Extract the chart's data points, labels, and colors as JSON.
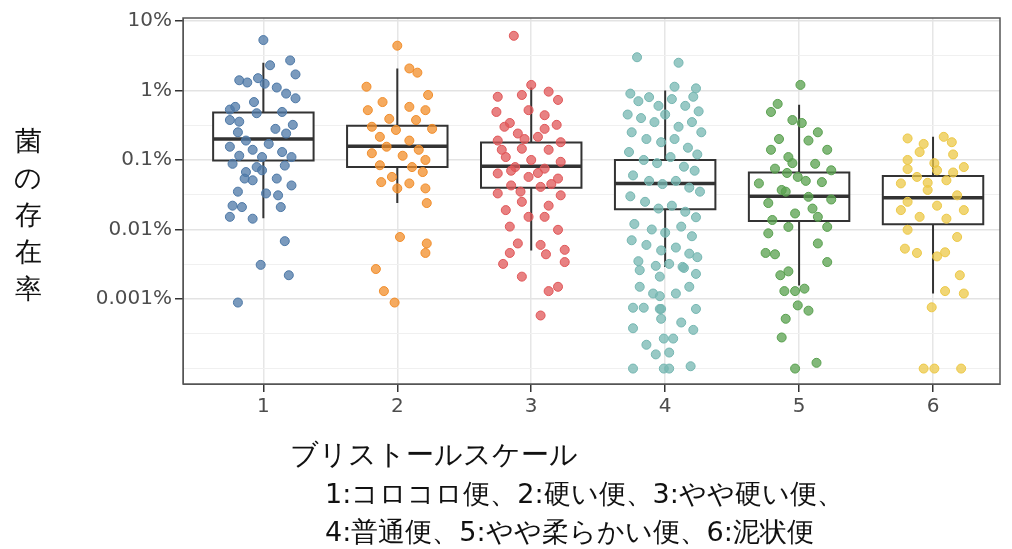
{
  "chart_data": {
    "type": "box",
    "xlabel": "ブリストールスケール",
    "ylabel": "菌の存在率",
    "annotations": [
      "1:コロコロ便、2:硬い便、3:やや硬い便、",
      "4:普通便、5:やや柔らかい便、6:泥状便"
    ],
    "x": [
      1,
      2,
      3,
      4,
      5,
      6
    ],
    "boxes": [
      {
        "low": 0.0145,
        "q1": 0.098,
        "median": 0.2,
        "q3": 0.48,
        "high": 2.5
      },
      {
        "low": 0.024,
        "q1": 0.079,
        "median": 0.158,
        "q3": 0.31,
        "high": 2.07
      },
      {
        "low": 0.005,
        "q1": 0.04,
        "median": 0.081,
        "q3": 0.178,
        "high": 1.1
      },
      {
        "low": 0.0029,
        "q1": 0.0195,
        "median": 0.046,
        "q3": 0.1,
        "high": 1.0
      },
      {
        "low": 0.00157,
        "q1": 0.0133,
        "median": 0.03,
        "q3": 0.066,
        "high": 0.62
      },
      {
        "low": 0.0012,
        "q1": 0.0119,
        "median": 0.0287,
        "q3": 0.059,
        "high": 0.215
      }
    ],
    "series": [
      {
        "type": "scatter",
        "color": "#4e79a7",
        "x": [
          1.0,
          1.2,
          1.05,
          1.24,
          0.82,
          0.88,
          0.96,
          1.01,
          1.1,
          1.17,
          1.24,
          0.93,
          0.79,
          0.75,
          0.95,
          1.14,
          0.75,
          0.82,
          1.22,
          1.09,
          0.81,
          1.17,
          0.87,
          1.04,
          0.75,
          0.92,
          1.14,
          0.82,
          0.99,
          1.21,
          0.77,
          0.95,
          1.16,
          0.87,
          0.99,
          0.86,
          0.92,
          1.1,
          1.21,
          0.81,
          1.02,
          1.11,
          0.77,
          0.84,
          1.13,
          0.75,
          0.92,
          1.16,
          0.98,
          1.19,
          0.81
        ],
        "values": [
          5.3,
          2.7,
          2.3,
          1.7,
          1.4,
          1.3,
          1.5,
          1.25,
          1.1,
          0.9,
          0.77,
          0.68,
          0.58,
          0.53,
          0.47,
          0.49,
          0.375,
          0.355,
          0.32,
          0.28,
          0.25,
          0.24,
          0.19,
          0.17,
          0.155,
          0.14,
          0.13,
          0.115,
          0.11,
          0.11,
          0.088,
          0.079,
          0.083,
          0.067,
          0.071,
          0.054,
          0.051,
          0.054,
          0.043,
          0.035,
          0.033,
          0.031,
          0.022,
          0.021,
          0.021,
          0.0152,
          0.0143,
          0.0068,
          0.0031,
          0.0022,
          0.00089
        ]
      },
      {
        "type": "scatter",
        "color": "#f28e2b",
        "x": [
          2.0,
          2.09,
          2.15,
          1.77,
          2.23,
          1.89,
          2.09,
          1.78,
          2.21,
          1.94,
          2.14,
          1.81,
          2.26,
          1.99,
          1.87,
          2.09,
          1.92,
          2.16,
          1.81,
          2.04,
          2.21,
          1.87,
          2.11,
          2.19,
          1.96,
          1.88,
          2.09,
          2.0,
          2.21,
          2.22,
          2.02,
          2.22,
          2.21,
          1.84,
          1.9,
          1.98
        ],
        "values": [
          4.4,
          2.07,
          1.8,
          1.13,
          0.86,
          0.68,
          0.58,
          0.52,
          0.52,
          0.39,
          0.375,
          0.3,
          0.28,
          0.27,
          0.215,
          0.19,
          0.155,
          0.14,
          0.125,
          0.115,
          0.1,
          0.084,
          0.079,
          0.067,
          0.057,
          0.048,
          0.046,
          0.039,
          0.039,
          0.024,
          0.0078,
          0.0063,
          0.0046,
          0.0027,
          0.0013,
          0.00089
        ]
      },
      {
        "type": "scatter",
        "color": "#e15759",
        "x": [
          2.87,
          3.0,
          3.13,
          2.75,
          2.93,
          3.2,
          2.74,
          2.98,
          3.1,
          2.84,
          3.19,
          2.9,
          3.05,
          2.75,
          3.22,
          2.93,
          3.13,
          2.81,
          3.0,
          3.22,
          2.88,
          3.1,
          2.75,
          2.98,
          3.2,
          2.85,
          3.07,
          2.75,
          3.22,
          2.93,
          3.13,
          2.81,
          2.98,
          3.1,
          2.84,
          3.2,
          2.9,
          3.07,
          3.25,
          2.84,
          3.11,
          3.25,
          2.79,
          2.93,
          3.2,
          3.13,
          3.07,
          2.8,
          2.95,
          3.1,
          2.85,
          3.05,
          2.92,
          3.15,
          2.78
        ],
        "values": [
          6.1,
          1.2,
          0.96,
          0.81,
          0.86,
          0.73,
          0.49,
          0.52,
          0.44,
          0.34,
          0.32,
          0.24,
          0.215,
          0.19,
          0.18,
          0.145,
          0.14,
          0.11,
          0.1,
          0.094,
          0.079,
          0.075,
          0.064,
          0.057,
          0.054,
          0.043,
          0.041,
          0.033,
          0.031,
          0.025,
          0.022,
          0.019,
          0.0152,
          0.0152,
          0.011,
          0.0099,
          0.0063,
          0.006,
          0.0051,
          0.0046,
          0.0044,
          0.0034,
          0.0032,
          0.0021,
          0.0015,
          0.0013,
          0.00058,
          0.3,
          0.2,
          0.28,
          0.07,
          0.065,
          0.035,
          0.045,
          0.14
        ]
      },
      {
        "type": "scatter",
        "color": "#76b7b2",
        "x": [
          3.79,
          4.1,
          4.07,
          4.23,
          4.21,
          3.74,
          3.8,
          3.88,
          3.95,
          4.05,
          4.15,
          4.25,
          3.72,
          3.82,
          3.92,
          4.0,
          4.1,
          4.2,
          4.27,
          3.75,
          3.86,
          3.97,
          4.07,
          4.17,
          4.24,
          3.73,
          3.84,
          3.94,
          4.04,
          4.14,
          4.22,
          3.76,
          3.88,
          3.98,
          4.08,
          4.18,
          4.26,
          3.74,
          3.85,
          3.95,
          4.05,
          4.15,
          4.23,
          3.77,
          3.9,
          4.0,
          4.12,
          4.2,
          3.75,
          3.86,
          3.97,
          4.08,
          4.18,
          4.24,
          3.8,
          3.93,
          4.03,
          4.14,
          3.81,
          3.91,
          4.08,
          4.18,
          3.96,
          4.23,
          3.81,
          3.96,
          4.13,
          3.76,
          3.84,
          3.96,
          3.76,
          3.86,
          3.93,
          3.76,
          3.99,
          3.97,
          3.97,
          4.12,
          4.21,
          3.99,
          4.06,
          4.03,
          4.03,
          4.19,
          4.23
        ],
        "values": [
          3.0,
          2.5,
          1.13,
          1.07,
          0.81,
          0.9,
          0.7,
          0.8,
          0.6,
          0.75,
          0.6,
          0.5,
          0.45,
          0.4,
          0.35,
          0.45,
          0.3,
          0.35,
          0.25,
          0.25,
          0.2,
          0.18,
          0.2,
          0.15,
          0.12,
          0.13,
          0.1,
          0.09,
          0.11,
          0.08,
          0.07,
          0.06,
          0.05,
          0.045,
          0.05,
          0.04,
          0.035,
          0.03,
          0.025,
          0.02,
          0.022,
          0.018,
          0.015,
          0.012,
          0.01,
          0.009,
          0.011,
          0.008,
          0.007,
          0.006,
          0.005,
          0.0055,
          0.0045,
          0.004,
          0.0035,
          0.003,
          0.0032,
          0.0028,
          0.0015,
          0.0012,
          0.0012,
          0.0015,
          0.0011,
          0.0023,
          0.0026,
          0.0021,
          0.0029,
          0.00075,
          0.00075,
          0.00072,
          0.00038,
          0.00022,
          0.00016,
          0.0001,
          0.0001,
          0.00072,
          0.00052,
          0.00046,
          0.00036,
          0.00027,
          0.00027,
          0.00017,
          0.0001,
          0.000108,
          0.00072
        ]
      },
      {
        "type": "scatter",
        "color": "#59a14f",
        "x": [
          5.01,
          4.79,
          4.84,
          4.95,
          5.14,
          5.02,
          5.07,
          4.79,
          5.21,
          4.92,
          5.12,
          5.24,
          4.82,
          4.99,
          4.7,
          5.17,
          4.87,
          5.07,
          4.77,
          5.24,
          4.97,
          5.14,
          4.8,
          4.92,
          5.21,
          4.77,
          5.14,
          4.75,
          4.82,
          5.21,
          4.86,
          4.92,
          4.89,
          4.97,
          5.04,
          4.99,
          5.07,
          4.9,
          4.87,
          4.97,
          5.13,
          4.85,
          4.95,
          5.05,
          4.9,
          5.1,
          4.91
        ],
        "values": [
          1.2,
          0.49,
          0.64,
          0.375,
          0.25,
          0.34,
          0.19,
          0.14,
          0.14,
          0.11,
          0.088,
          0.071,
          0.075,
          0.057,
          0.046,
          0.048,
          0.037,
          0.0295,
          0.024,
          0.027,
          0.017,
          0.0152,
          0.0137,
          0.0109,
          0.0109,
          0.0088,
          0.0063,
          0.0046,
          0.0044,
          0.0034,
          0.0022,
          0.0025,
          0.0013,
          0.0013,
          0.00141,
          0.00081,
          0.00068,
          0.00052,
          0.00028,
          0.0001,
          0.000121,
          0.2,
          0.09,
          0.05,
          0.035,
          0.02,
          0.065
        ]
      },
      {
        "type": "scatter",
        "color": "#edc948",
        "x": [
          5.81,
          6.14,
          6.08,
          5.93,
          5.81,
          6.23,
          6.03,
          5.88,
          6.1,
          5.76,
          5.96,
          6.18,
          5.81,
          6.03,
          6.23,
          5.76,
          5.9,
          6.1,
          5.81,
          6.18,
          5.79,
          5.88,
          6.03,
          6.09,
          6.2,
          6.09,
          6.23,
          5.99,
          5.93,
          6.01,
          6.21,
          5.9,
          6.15,
          6.01,
          5.81,
          6.15,
          5.96
        ],
        "values": [
          0.204,
          0.18,
          0.215,
          0.17,
          0.1,
          0.079,
          0.071,
          0.057,
          0.051,
          0.046,
          0.037,
          0.031,
          0.025,
          0.022,
          0.019,
          0.019,
          0.0152,
          0.0143,
          0.0099,
          0.0078,
          0.0053,
          0.0046,
          0.0041,
          0.0047,
          0.0022,
          0.0013,
          0.0012,
          0.00076,
          0.0001,
          0.0001,
          0.0001,
          0.13,
          0.12,
          0.09,
          0.074,
          0.066,
          0.047
        ]
      }
    ],
    "xlim": [
      0.4,
      6.5
    ],
    "xticks": [
      1,
      2,
      3,
      4,
      5,
      6
    ],
    "ylim": [
      6e-05,
      11
    ],
    "yticks": [
      {
        "value": 10,
        "label": "10%"
      },
      {
        "value": 3.16,
        "label": null
      },
      {
        "value": 1,
        "label": "1%"
      },
      {
        "value": 0.316,
        "label": null
      },
      {
        "value": 0.1,
        "label": "0.1%"
      },
      {
        "value": 0.0316,
        "label": null
      },
      {
        "value": 0.01,
        "label": "0.01%"
      },
      {
        "value": 0.00316,
        "label": null
      },
      {
        "value": 0.001,
        "label": "0.001%"
      },
      {
        "value": 0.000316,
        "label": null
      },
      {
        "value": 0.0001,
        "label": null
      }
    ],
    "log": true,
    "grid": true,
    "marker": "circle"
  }
}
